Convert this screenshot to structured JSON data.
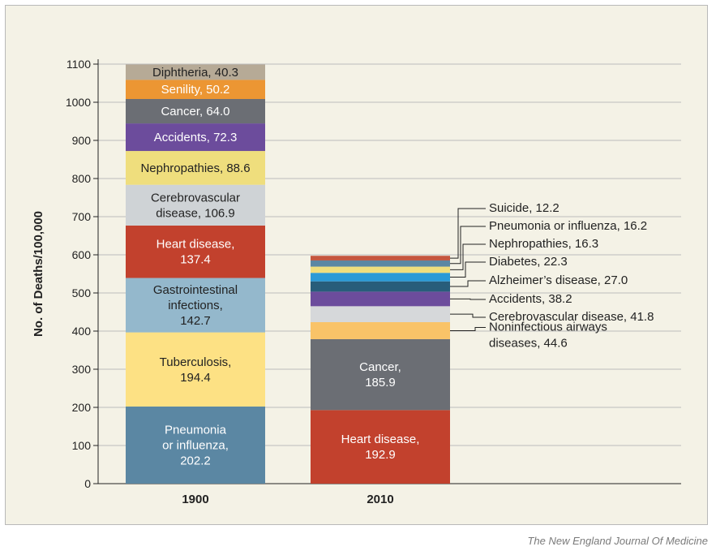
{
  "chart_data": {
    "type": "bar",
    "stacked": true,
    "ylabel": "No. of Deaths/100,000",
    "ylim": [
      0,
      1100
    ],
    "yticks": [
      0,
      100,
      200,
      300,
      400,
      500,
      600,
      700,
      800,
      900,
      1000,
      1100
    ],
    "grid": true,
    "categories": [
      "1900",
      "2010"
    ],
    "bars": [
      {
        "category": "1900",
        "segments": [
          {
            "lines": [
              "Pneumonia",
              "or influenza,",
              "202.2"
            ],
            "value": 202.2,
            "color": "#5b87a3"
          },
          {
            "lines": [
              "Tuberculosis,",
              "194.4"
            ],
            "value": 194.4,
            "color": "#fde184"
          },
          {
            "lines": [
              "Gastrointestinal",
              "infections,",
              "142.7"
            ],
            "value": 142.7,
            "color": "#94b8cc"
          },
          {
            "lines": [
              "Heart disease,",
              "137.4"
            ],
            "value": 137.4,
            "color": "#c2412d"
          },
          {
            "lines": [
              "Cerebrovascular",
              "disease, 106.9"
            ],
            "value": 106.9,
            "color": "#cfd3d6"
          },
          {
            "lines": [
              "Nephropathies, 88.6"
            ],
            "value": 88.6,
            "color": "#efde7d"
          },
          {
            "lines": [
              "Accidents, 72.3"
            ],
            "value": 72.3,
            "color": "#6c4c9c"
          },
          {
            "lines": [
              "Cancer, 64.0"
            ],
            "value": 64.0,
            "color": "#6b6e74"
          },
          {
            "lines": [
              "Senility, 50.2"
            ],
            "value": 50.2,
            "color": "#ec9633"
          },
          {
            "lines": [
              "Diphtheria, 40.3"
            ],
            "value": 40.3,
            "color": "#b6aa96"
          }
        ]
      },
      {
        "category": "2010",
        "segments": [
          {
            "lines": [
              "Heart disease,",
              "192.9"
            ],
            "value": 192.9,
            "color": "#c2412d"
          },
          {
            "lines": [
              "Cancer,",
              "185.9"
            ],
            "value": 185.9,
            "color": "#6b6e74"
          },
          {
            "lines": [
              "Noninfectious airways",
              "diseases, 44.6"
            ],
            "value": 44.6,
            "color": "#f9c368",
            "callout": true
          },
          {
            "lines": [
              "Cerebrovascular disease, 41.8"
            ],
            "value": 41.8,
            "color": "#d6d8da",
            "callout": true
          },
          {
            "lines": [
              "Accidents, 38.2"
            ],
            "value": 38.2,
            "color": "#6c4c9c",
            "callout": true
          },
          {
            "lines": [
              "Alzheimer’s disease, 27.0"
            ],
            "value": 27.0,
            "color": "#285d7a",
            "callout": true
          },
          {
            "lines": [
              "Diabetes, 22.3"
            ],
            "value": 22.3,
            "color": "#2a9ad6",
            "callout": true
          },
          {
            "lines": [
              "Nephropathies, 16.3"
            ],
            "value": 16.3,
            "color": "#efde7d",
            "callout": true
          },
          {
            "lines": [
              "Pneumonia or influenza, 16.2"
            ],
            "value": 16.2,
            "color": "#5b87a3",
            "callout": true
          },
          {
            "lines": [
              "Suicide, 12.2"
            ],
            "value": 12.2,
            "color": "#c5563f",
            "callout": true
          }
        ]
      }
    ]
  },
  "source": "The New England Journal Of Medicine"
}
